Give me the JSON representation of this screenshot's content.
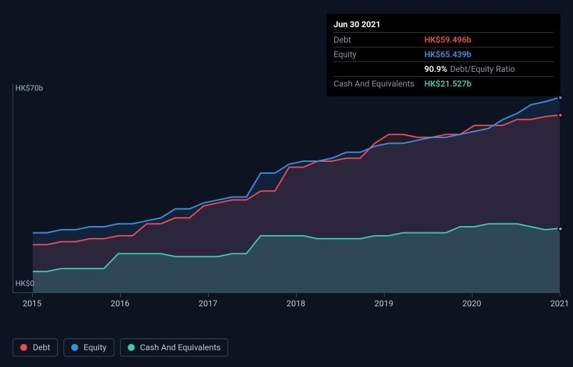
{
  "tooltip": {
    "date": "Jun 30 2021",
    "rows": [
      {
        "label": "Debt",
        "value": "HK$59.496b",
        "color": "#e94b55"
      },
      {
        "label": "Equity",
        "value": "HK$65.439b",
        "color": "#3a8de0"
      },
      {
        "label": "",
        "ratio_value": "90.9%",
        "ratio_label": "Debt/Equity Ratio"
      },
      {
        "label": "Cash And Equivalents",
        "value": "HK$21.527b",
        "color": "#3ac9b0"
      }
    ]
  },
  "chart": {
    "type": "area",
    "background_color": "#0d1421",
    "y_axis": {
      "labels": {
        "top": "HK$70b",
        "bottom": "HK$0"
      },
      "min": 0,
      "max": 70
    },
    "x_axis": {
      "labels": [
        "2015",
        "2016",
        "2017",
        "2018",
        "2019",
        "2020",
        "2021"
      ]
    },
    "series": [
      {
        "name": "Debt",
        "color": "#e94b55",
        "fill_opacity": 0.12,
        "y": [
          16,
          16,
          17,
          17,
          18,
          18,
          19,
          19,
          23,
          23,
          25,
          25,
          29,
          30,
          31,
          31,
          34,
          34,
          42,
          42,
          44,
          44,
          45,
          45,
          50,
          53,
          53,
          52,
          52,
          53,
          53,
          56,
          56,
          56,
          58,
          58,
          59,
          59.5
        ]
      },
      {
        "name": "Equity",
        "color": "#3a8de0",
        "fill_opacity": 0.12,
        "y": [
          20,
          20,
          21,
          21,
          22,
          22,
          23,
          23,
          24,
          25,
          28,
          28,
          30,
          31,
          32,
          32,
          40,
          40,
          43,
          44,
          44,
          45,
          47,
          47,
          49,
          50,
          50,
          51,
          52,
          52,
          53,
          54,
          55,
          58,
          60,
          63,
          64,
          65.4
        ]
      },
      {
        "name": "Cash And Equivalents",
        "color": "#3ac9b0",
        "fill_opacity": 0.22,
        "y": [
          7,
          7,
          8,
          8,
          8,
          8,
          13,
          13,
          13,
          13,
          12,
          12,
          12,
          12,
          13,
          13,
          19,
          19,
          19,
          19,
          18,
          18,
          18,
          18,
          19,
          19,
          20,
          20,
          20,
          20,
          22,
          22,
          23,
          23,
          23,
          22,
          21,
          21.5
        ]
      }
    ],
    "end_markers": [
      {
        "color": "#3a8de0",
        "y": 65.4
      },
      {
        "color": "#e94b55",
        "y": 59.5
      },
      {
        "color": "#3ac9b0",
        "y": 21.5
      }
    ]
  },
  "legend": [
    {
      "label": "Debt",
      "color": "#e94b55"
    },
    {
      "label": "Equity",
      "color": "#3a8de0"
    },
    {
      "label": "Cash And Equivalents",
      "color": "#3ac9b0"
    }
  ]
}
